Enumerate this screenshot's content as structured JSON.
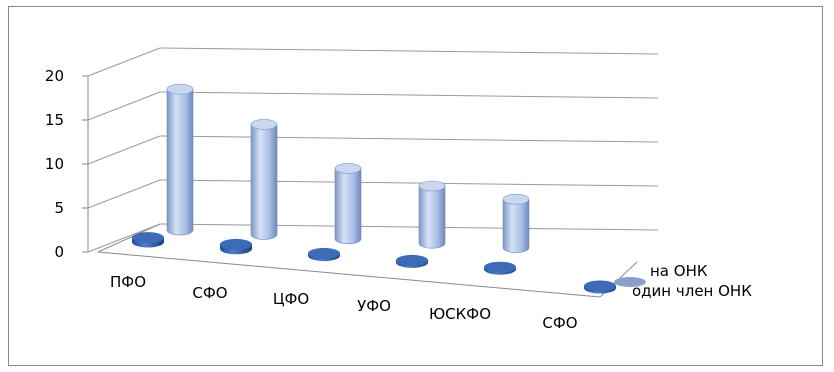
{
  "chart_data": {
    "type": "bar",
    "style": "3d-cylinder",
    "categories": [
      "ПФО",
      "СФО",
      "ЦФО",
      "УФО",
      "ЮСКФО",
      "СФО"
    ],
    "series": [
      {
        "name": "один член ОНК",
        "values": [
          1,
          1,
          0.5,
          0.3,
          0.3,
          0
        ],
        "color": "#2e5fa8"
      },
      {
        "name": "на ОНК",
        "values": [
          16,
          12.5,
          8,
          6.5,
          5.5,
          0
        ],
        "color": "#a6bbe1"
      }
    ],
    "ylim": [
      0,
      20
    ],
    "yticks": [
      "0",
      "5",
      "10",
      "15",
      "20"
    ],
    "grid": true
  }
}
